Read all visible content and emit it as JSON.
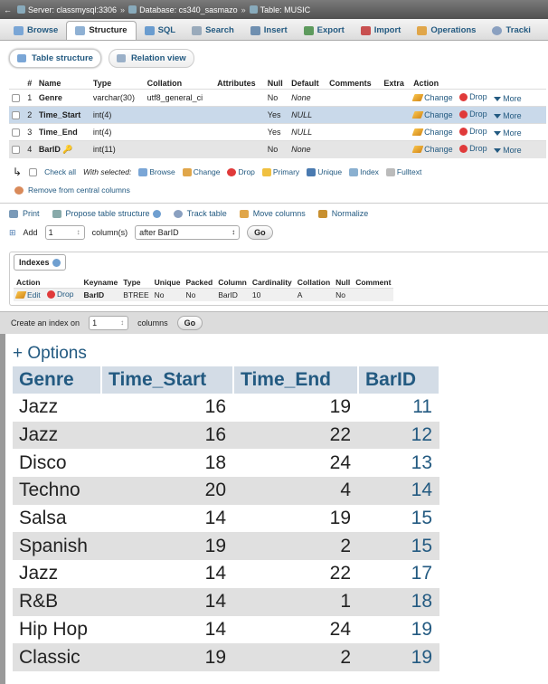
{
  "breadcrumb": {
    "server": "Server: classmysql:3306",
    "database": "Database: cs340_sasmazo",
    "table": "Table: MUSIC"
  },
  "tabs": [
    {
      "label": "Browse"
    },
    {
      "label": "Structure"
    },
    {
      "label": "SQL"
    },
    {
      "label": "Search"
    },
    {
      "label": "Insert"
    },
    {
      "label": "Export"
    },
    {
      "label": "Import"
    },
    {
      "label": "Operations"
    },
    {
      "label": "Tracki"
    }
  ],
  "subtabs": [
    {
      "label": "Table structure"
    },
    {
      "label": "Relation view"
    }
  ],
  "structure": {
    "headers": [
      "#",
      "Name",
      "Type",
      "Collation",
      "Attributes",
      "Null",
      "Default",
      "Comments",
      "Extra",
      "Action"
    ],
    "rows": [
      {
        "num": "1",
        "name": "Genre",
        "type": "varchar(30)",
        "collation": "utf8_general_ci",
        "null": "No",
        "default": "None"
      },
      {
        "num": "2",
        "name": "Time_Start",
        "type": "int(4)",
        "collation": "",
        "null": "Yes",
        "default": "NULL"
      },
      {
        "num": "3",
        "name": "Time_End",
        "type": "int(4)",
        "collation": "",
        "null": "Yes",
        "default": "NULL"
      },
      {
        "num": "4",
        "name": "BarID",
        "type": "int(11)",
        "collation": "",
        "null": "No",
        "default": "None"
      }
    ],
    "action_change": "Change",
    "action_drop": "Drop",
    "action_more": "More"
  },
  "with_selected": {
    "check_all": "Check all",
    "label": "With selected:",
    "buttons": [
      "Browse",
      "Change",
      "Drop",
      "Primary",
      "Unique",
      "Index",
      "Fulltext"
    ],
    "remove": "Remove from central columns"
  },
  "actions": [
    "Print",
    "Propose table structure",
    "Track table",
    "Move columns",
    "Normalize"
  ],
  "add_column": {
    "label": "Add",
    "count": "1",
    "unit": "column(s)",
    "position": "after BarID",
    "go": "Go"
  },
  "indexes": {
    "legend": "Indexes",
    "headers": [
      "Action",
      "Keyname",
      "Type",
      "Unique",
      "Packed",
      "Column",
      "Cardinality",
      "Collation",
      "Null",
      "Comment"
    ],
    "row": {
      "edit": "Edit",
      "drop": "Drop",
      "keyname": "BarID",
      "type": "BTREE",
      "unique": "No",
      "packed": "No",
      "column": "BarID",
      "cardinality": "10",
      "collation": "A",
      "null": "No",
      "comment": ""
    }
  },
  "create_index": {
    "label": "Create an index on",
    "count": "1",
    "unit": "columns",
    "go": "Go"
  },
  "result": {
    "options_label": "+ Options",
    "headers": [
      "Genre",
      "Time_Start",
      "Time_End",
      "BarID"
    ],
    "rows": [
      [
        "Jazz",
        "16",
        "19",
        "11"
      ],
      [
        "Jazz",
        "16",
        "22",
        "12"
      ],
      [
        "Disco",
        "18",
        "24",
        "13"
      ],
      [
        "Techno",
        "20",
        "4",
        "14"
      ],
      [
        "Salsa",
        "14",
        "19",
        "15"
      ],
      [
        "Spanish",
        "19",
        "2",
        "15"
      ],
      [
        "Jazz",
        "14",
        "22",
        "17"
      ],
      [
        "R&B",
        "14",
        "1",
        "18"
      ],
      [
        "Hip Hop",
        "14",
        "24",
        "19"
      ],
      [
        "Classic",
        "19",
        "2",
        "19"
      ]
    ]
  },
  "colors": {
    "link": "#235a81",
    "header_bg": "#d3dce6",
    "row_alt": "#e0e0e0",
    "highlight": "#c9d9ea"
  }
}
